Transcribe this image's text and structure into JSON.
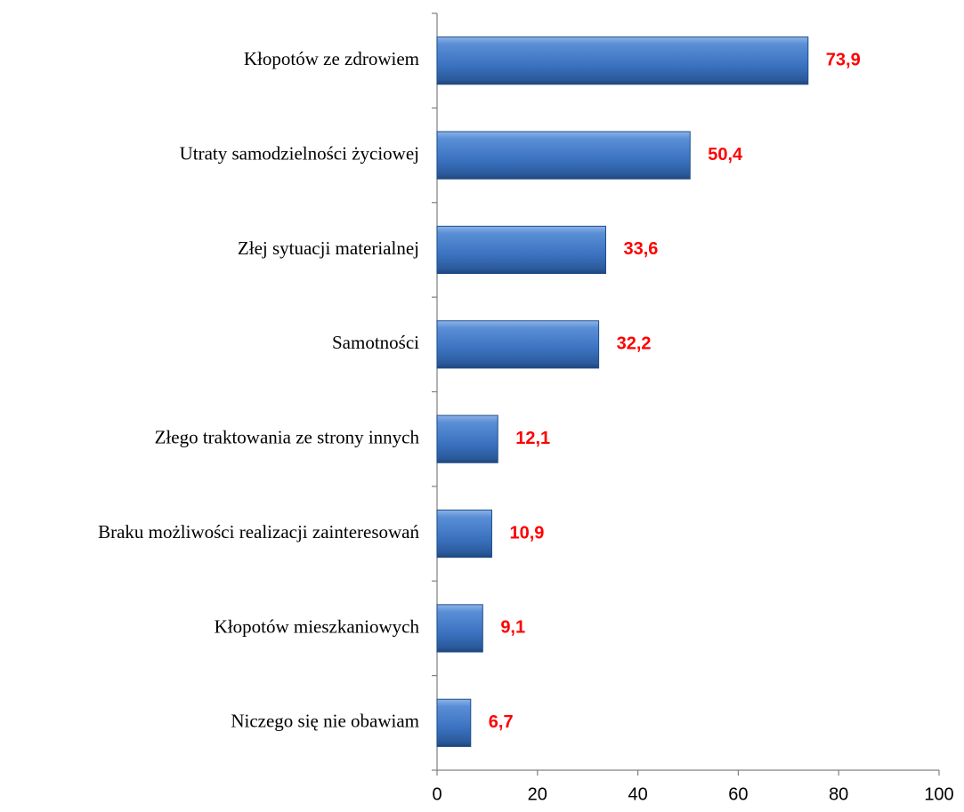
{
  "chart_data": {
    "type": "bar",
    "orientation": "horizontal",
    "categories": [
      "Kłopotów ze zdrowiem",
      "Utraty samodzielności życiowej",
      "Złej sytuacji materialnej",
      "Samotności",
      "Złego traktowania ze strony innych",
      "Braku możliwości realizacji zainteresowań",
      "Kłopotów mieszkaniowych",
      "Niczego się nie obawiam"
    ],
    "values": [
      73.9,
      50.4,
      33.6,
      32.2,
      12.1,
      10.9,
      9.1,
      6.7
    ],
    "value_labels": [
      "73,9",
      "50,4",
      "33,6",
      "32,2",
      "12,1",
      "10,9",
      "9,1",
      "6,7"
    ],
    "color": "#3d74c2",
    "label_color": "#ff0000",
    "xlim": [
      0,
      100
    ],
    "xticks": [
      0,
      20,
      40,
      60,
      80,
      100
    ],
    "grid": false
  }
}
